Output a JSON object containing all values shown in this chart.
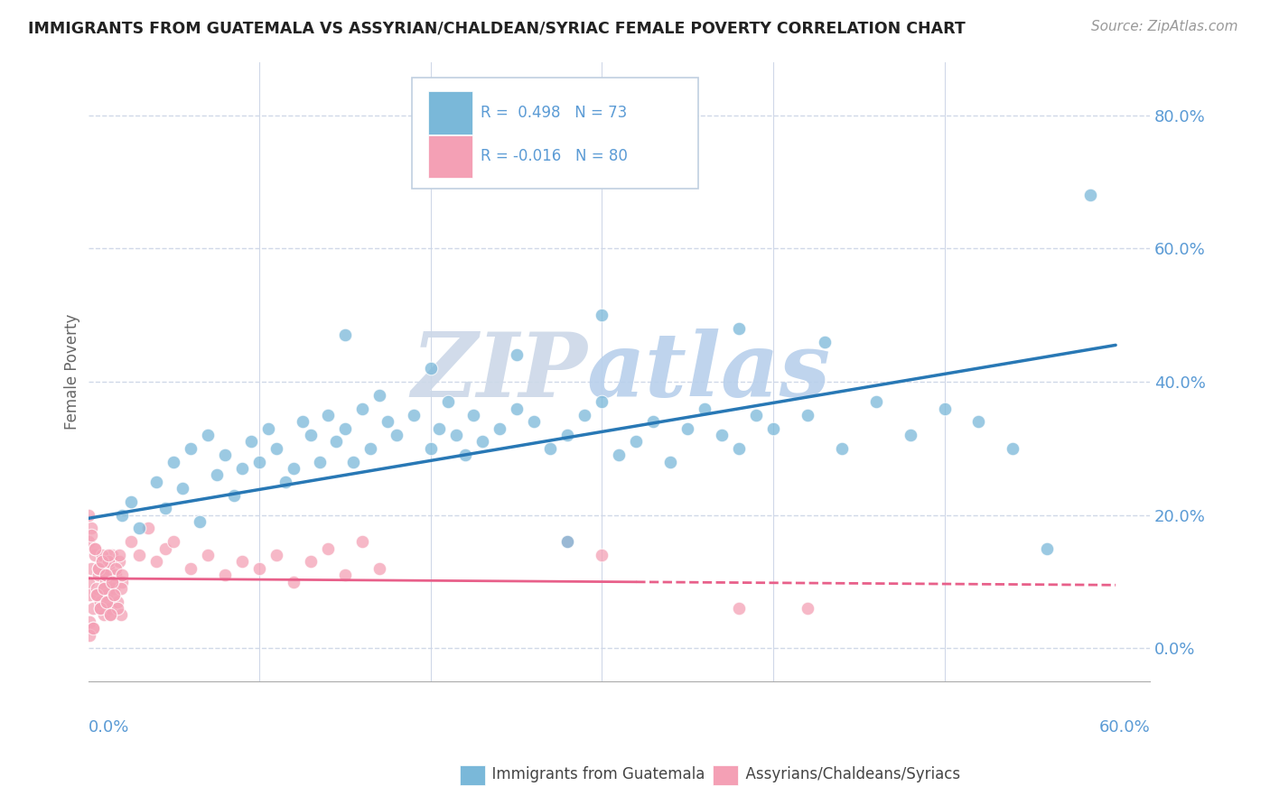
{
  "title": "IMMIGRANTS FROM GUATEMALA VS ASSYRIAN/CHALDEAN/SYRIAC FEMALE POVERTY CORRELATION CHART",
  "source": "Source: ZipAtlas.com",
  "ylabel": "Female Poverty",
  "xlim": [
    0.0,
    0.62
  ],
  "ylim": [
    -0.05,
    0.88
  ],
  "yticks": [
    0.0,
    0.2,
    0.4,
    0.6,
    0.8
  ],
  "blue_color": "#7ab8d9",
  "pink_color": "#f4a0b5",
  "blue_line_color": "#2878b5",
  "pink_line_color": "#e8608a",
  "axis_tick_color": "#5b9bd5",
  "grid_color": "#d0d8e8",
  "watermark_zip_color": "#dde8f0",
  "watermark_atlas_color": "#c5daf0",
  "legend_border_color": "#c0cfe0",
  "blue_x": [
    0.02,
    0.025,
    0.03,
    0.04,
    0.045,
    0.05,
    0.055,
    0.06,
    0.065,
    0.07,
    0.075,
    0.08,
    0.085,
    0.09,
    0.095,
    0.1,
    0.105,
    0.11,
    0.115,
    0.12,
    0.125,
    0.13,
    0.135,
    0.14,
    0.145,
    0.15,
    0.155,
    0.16,
    0.165,
    0.17,
    0.175,
    0.18,
    0.19,
    0.2,
    0.205,
    0.21,
    0.215,
    0.22,
    0.225,
    0.23,
    0.24,
    0.25,
    0.26,
    0.27,
    0.28,
    0.29,
    0.3,
    0.31,
    0.32,
    0.33,
    0.34,
    0.35,
    0.36,
    0.37,
    0.38,
    0.39,
    0.4,
    0.42,
    0.44,
    0.46,
    0.48,
    0.5,
    0.52,
    0.54,
    0.56,
    0.38,
    0.43,
    0.3,
    0.25,
    0.2,
    0.15,
    0.585,
    0.28
  ],
  "blue_y": [
    0.2,
    0.22,
    0.18,
    0.25,
    0.21,
    0.28,
    0.24,
    0.3,
    0.19,
    0.32,
    0.26,
    0.29,
    0.23,
    0.27,
    0.31,
    0.28,
    0.33,
    0.3,
    0.25,
    0.27,
    0.34,
    0.32,
    0.28,
    0.35,
    0.31,
    0.33,
    0.28,
    0.36,
    0.3,
    0.38,
    0.34,
    0.32,
    0.35,
    0.3,
    0.33,
    0.37,
    0.32,
    0.29,
    0.35,
    0.31,
    0.33,
    0.36,
    0.34,
    0.3,
    0.32,
    0.35,
    0.37,
    0.29,
    0.31,
    0.34,
    0.28,
    0.33,
    0.36,
    0.32,
    0.3,
    0.35,
    0.33,
    0.35,
    0.3,
    0.37,
    0.32,
    0.36,
    0.34,
    0.3,
    0.15,
    0.48,
    0.46,
    0.5,
    0.44,
    0.42,
    0.47,
    0.68,
    0.16
  ],
  "pink_x": [
    0.0,
    0.001,
    0.002,
    0.003,
    0.004,
    0.005,
    0.006,
    0.007,
    0.008,
    0.009,
    0.01,
    0.011,
    0.012,
    0.013,
    0.014,
    0.015,
    0.016,
    0.017,
    0.018,
    0.019,
    0.02,
    0.0,
    0.001,
    0.002,
    0.003,
    0.004,
    0.005,
    0.006,
    0.007,
    0.008,
    0.009,
    0.01,
    0.011,
    0.012,
    0.013,
    0.014,
    0.015,
    0.016,
    0.017,
    0.018,
    0.019,
    0.02,
    0.0,
    0.001,
    0.002,
    0.003,
    0.004,
    0.005,
    0.006,
    0.007,
    0.008,
    0.009,
    0.01,
    0.011,
    0.012,
    0.013,
    0.014,
    0.015,
    0.025,
    0.03,
    0.035,
    0.04,
    0.045,
    0.05,
    0.06,
    0.07,
    0.08,
    0.09,
    0.1,
    0.11,
    0.12,
    0.13,
    0.14,
    0.15,
    0.16,
    0.17,
    0.28,
    0.3,
    0.38,
    0.42
  ],
  "pink_y": [
    0.1,
    0.08,
    0.12,
    0.06,
    0.14,
    0.09,
    0.11,
    0.07,
    0.13,
    0.05,
    0.1,
    0.08,
    0.12,
    0.06,
    0.14,
    0.09,
    0.11,
    0.07,
    0.13,
    0.05,
    0.1,
    0.16,
    0.04,
    0.18,
    0.03,
    0.15,
    0.08,
    0.12,
    0.06,
    0.14,
    0.09,
    0.11,
    0.07,
    0.13,
    0.05,
    0.1,
    0.08,
    0.12,
    0.06,
    0.14,
    0.09,
    0.11,
    0.2,
    0.02,
    0.17,
    0.03,
    0.15,
    0.08,
    0.12,
    0.06,
    0.13,
    0.09,
    0.11,
    0.07,
    0.14,
    0.05,
    0.1,
    0.08,
    0.16,
    0.14,
    0.18,
    0.13,
    0.15,
    0.16,
    0.12,
    0.14,
    0.11,
    0.13,
    0.12,
    0.14,
    0.1,
    0.13,
    0.15,
    0.11,
    0.16,
    0.12,
    0.16,
    0.14,
    0.06,
    0.06
  ],
  "blue_line_x0": 0.0,
  "blue_line_x1": 0.6,
  "blue_line_y0": 0.195,
  "blue_line_y1": 0.455,
  "pink_line_x0": 0.0,
  "pink_line_x1": 0.6,
  "pink_line_y0": 0.105,
  "pink_line_y1": 0.095
}
